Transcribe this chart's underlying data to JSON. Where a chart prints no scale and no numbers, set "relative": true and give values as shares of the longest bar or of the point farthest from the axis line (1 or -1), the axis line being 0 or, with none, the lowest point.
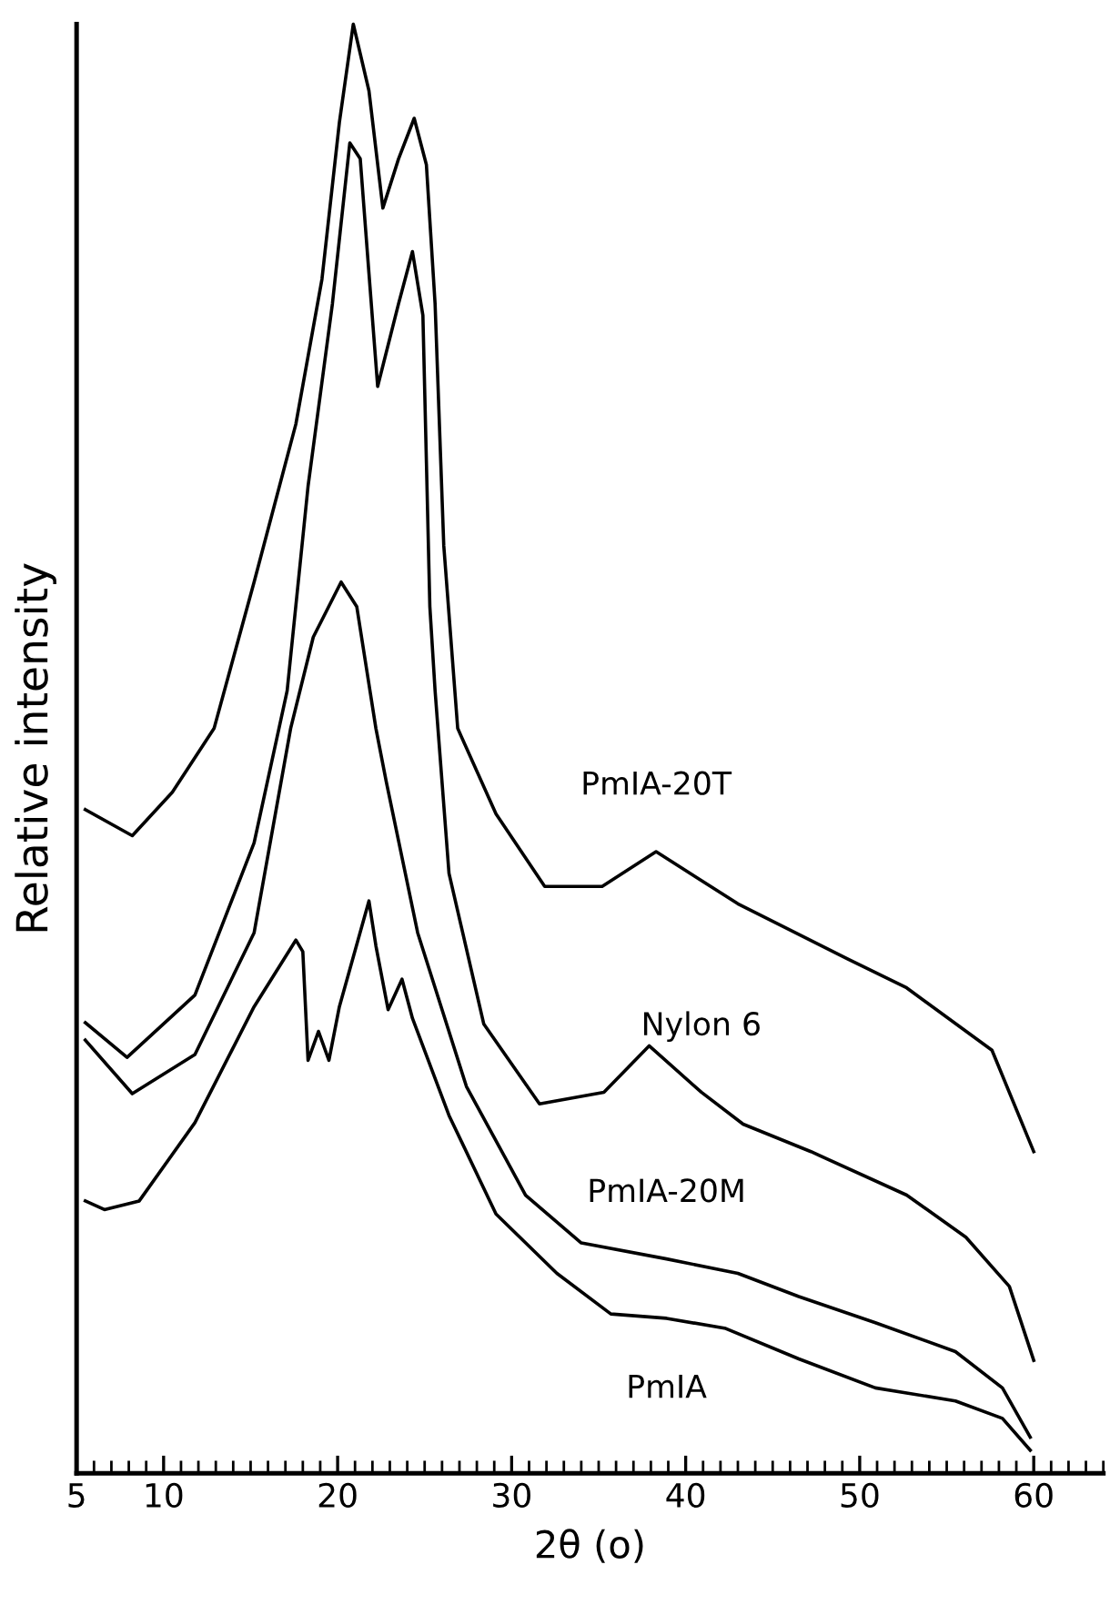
{
  "chart_data": {
    "type": "line",
    "xlabel": "2θ (o)",
    "ylabel": "Relative intensity",
    "relative": true,
    "xlim": [
      5,
      64
    ],
    "xticks": [
      5,
      10,
      20,
      30,
      40,
      50,
      60
    ],
    "grid": false,
    "legend": false,
    "marker": "none",
    "line_style": "solid",
    "series": [
      {
        "name": "PmIA-20T",
        "color": "#000000",
        "x": [
          5.5,
          8.2,
          10.5,
          12.9,
          15.2,
          17.6,
          19.1,
          20.1,
          20.9,
          21.8,
          22.6,
          23.5,
          24.4,
          25.1,
          25.6,
          26.1,
          26.9,
          29.1,
          31.9,
          35.2,
          38.3,
          43.0,
          49.3,
          52.7,
          57.6,
          60.0
        ],
        "values": [
          0.458,
          0.44,
          0.47,
          0.514,
          0.615,
          0.724,
          0.824,
          0.932,
          1.0,
          0.954,
          0.873,
          0.907,
          0.935,
          0.903,
          0.807,
          0.64,
          0.514,
          0.455,
          0.405,
          0.405,
          0.429,
          0.393,
          0.355,
          0.335,
          0.292,
          0.222
        ]
      },
      {
        "name": "Nylon 6",
        "color": "#000000",
        "x": [
          5.5,
          7.9,
          11.8,
          15.2,
          17.1,
          18.3,
          19.7,
          20.7,
          21.3,
          21.8,
          22.3,
          23.5,
          24.3,
          24.9,
          25.3,
          25.6,
          26.4,
          28.4,
          31.6,
          35.3,
          37.9,
          40.9,
          43.3,
          47.2,
          52.7,
          56.1,
          58.6,
          60.0
        ],
        "values": [
          0.311,
          0.287,
          0.33,
          0.435,
          0.54,
          0.681,
          0.807,
          0.918,
          0.907,
          0.828,
          0.75,
          0.807,
          0.843,
          0.799,
          0.598,
          0.54,
          0.414,
          0.31,
          0.255,
          0.263,
          0.295,
          0.263,
          0.241,
          0.222,
          0.192,
          0.163,
          0.129,
          0.078
        ]
      },
      {
        "name": "PmIA-20M",
        "color": "#000000",
        "x": [
          5.5,
          8.2,
          11.8,
          15.2,
          17.3,
          18.6,
          20.2,
          21.1,
          22.2,
          22.8,
          24.6,
          27.4,
          30.8,
          34.0,
          38.9,
          43.0,
          46.5,
          50.9,
          55.5,
          58.2,
          59.8
        ],
        "values": [
          0.299,
          0.262,
          0.289,
          0.373,
          0.514,
          0.577,
          0.615,
          0.598,
          0.514,
          0.477,
          0.373,
          0.267,
          0.192,
          0.159,
          0.148,
          0.138,
          0.122,
          0.104,
          0.084,
          0.059,
          0.025
        ]
      },
      {
        "name": "PmIA",
        "color": "#000000",
        "x": [
          5.5,
          6.6,
          8.6,
          11.8,
          15.2,
          17.6,
          18.0,
          18.3,
          18.9,
          19.5,
          20.1,
          21.8,
          22.2,
          22.9,
          23.7,
          24.3,
          26.4,
          29.1,
          32.6,
          35.7,
          38.9,
          42.3,
          46.5,
          50.9,
          55.5,
          58.2,
          59.8
        ],
        "values": [
          0.188,
          0.182,
          0.188,
          0.242,
          0.322,
          0.368,
          0.36,
          0.285,
          0.305,
          0.285,
          0.322,
          0.395,
          0.364,
          0.32,
          0.341,
          0.314,
          0.247,
          0.179,
          0.138,
          0.11,
          0.107,
          0.1,
          0.079,
          0.059,
          0.05,
          0.038,
          0.016
        ]
      }
    ]
  }
}
